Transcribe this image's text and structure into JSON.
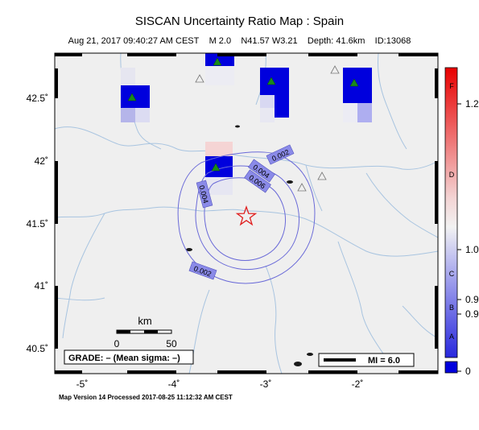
{
  "title": "SISCAN Uncertainty Ratio Map : Spain",
  "subtitle": {
    "datetime": "Aug 21, 2017 09:40:27 AM CEST",
    "magnitude": "M 2.0",
    "location": "N41.57 W3.21",
    "depth": "Depth: 41.6km",
    "id": "ID:13068"
  },
  "footer": "Map Version 14 Processed 2017-08-25 11:12:32 AM CEST",
  "axes": {
    "lat_ticks": [
      "42.5˚",
      "42˚",
      "41.5˚",
      "41˚",
      "40.5˚"
    ],
    "lon_ticks": [
      "-5˚",
      "-4˚",
      "-3˚",
      "-2˚"
    ]
  },
  "contour_labels": [
    "0.002",
    "0.004",
    "0.006",
    "0.004",
    "0.002"
  ],
  "scale_bar": {
    "unit": "km",
    "start": "0",
    "end": "50"
  },
  "grade_box": "GRADE: – (Mean sigma: –)",
  "mi_legend": "MI = 6.0",
  "colorbar": {
    "letters": [
      "F",
      "D",
      "C",
      "B",
      "A"
    ],
    "values": [
      "1.2",
      "1.0",
      "0.9",
      "0.9",
      "0"
    ]
  },
  "colors": {
    "epicenter": "#e02020",
    "station_active": "#1a8a1a",
    "contour": "#5a5ad0",
    "river": "#a8c4e0",
    "cell_blue": "#0000dd"
  }
}
